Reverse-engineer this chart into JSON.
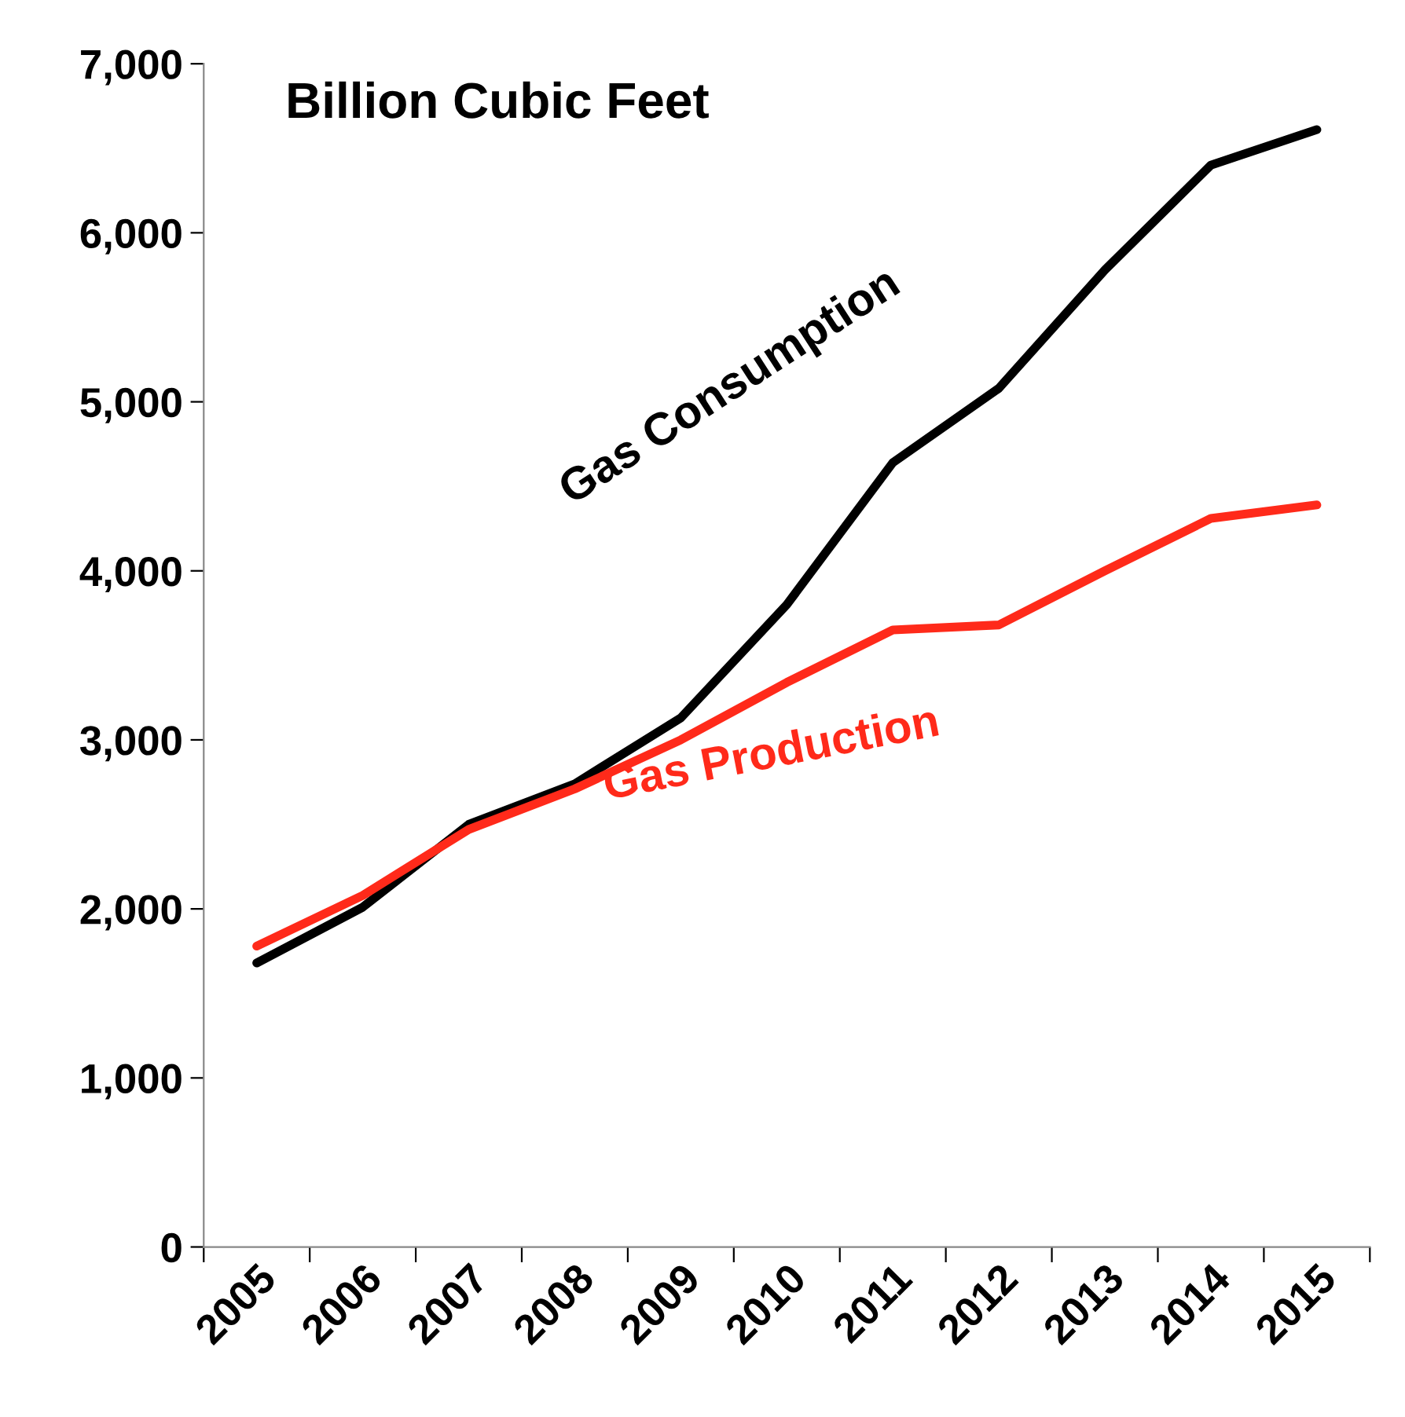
{
  "chart_data": {
    "type": "line",
    "title": "Billion Cubic Feet",
    "categories": [
      "2005",
      "2006",
      "2007",
      "2008",
      "2009",
      "2010",
      "2011",
      "2012",
      "2013",
      "2014",
      "2015"
    ],
    "series": [
      {
        "name": "Gas Consumption",
        "color": "#000000",
        "values": [
          1680,
          2010,
          2500,
          2740,
          3130,
          3800,
          4640,
          5080,
          5780,
          6400,
          6610
        ]
      },
      {
        "name": "Gas Production",
        "color": "#ff2a1a",
        "values": [
          1780,
          2080,
          2470,
          2710,
          3000,
          3340,
          3650,
          3680,
          4000,
          4310,
          4390
        ]
      }
    ],
    "ylim": [
      0,
      7000
    ],
    "yticks": [
      {
        "value": 0,
        "label": "0"
      },
      {
        "value": 1000,
        "label": "1,000"
      },
      {
        "value": 2000,
        "label": "2,000"
      },
      {
        "value": 3000,
        "label": "3,000"
      },
      {
        "value": 4000,
        "label": "4,000"
      },
      {
        "value": 5000,
        "label": "5,000"
      },
      {
        "value": 6000,
        "label": "6,000"
      },
      {
        "value": 7000,
        "label": "7,000"
      }
    ],
    "grid": false,
    "legend": false,
    "marker": "none",
    "line_style": "solid"
  }
}
